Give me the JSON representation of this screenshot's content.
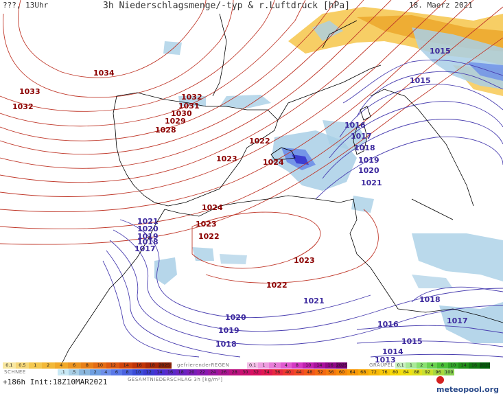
{
  "header": {
    "left": "???, 13Uhr",
    "title": "3h Niederschlagsmenge/-typ & r.Luftdruck [hPa]",
    "date": "18. Maerz 2021"
  },
  "isobar_labels_red": [
    "1034",
    "1033",
    "1032",
    "1032",
    "1031",
    "1030",
    "1029",
    "1028",
    "1022",
    "1023",
    "1024",
    "1024",
    "1023",
    "1022",
    "1023",
    "1022"
  ],
  "isobar_labels_blue": [
    "1015",
    "1015",
    "1016",
    "1017",
    "1018",
    "1019",
    "1020",
    "1021",
    "1021",
    "1020",
    "1019",
    "1018",
    "1017",
    "1021",
    "1020",
    "1019",
    "1018",
    "1018",
    "1017",
    "1016",
    "1015",
    "1014",
    "1013"
  ],
  "legend": {
    "schnee_label": "SCHNEE",
    "schnee_values": [
      "0.1",
      "0.5",
      "1",
      "2",
      "4",
      "6",
      "8",
      "10",
      "12",
      "14",
      "16",
      "18",
      "2025+"
    ],
    "regen_label": "gefrierenderREGEN",
    "regen_values": [
      "0.1",
      "1",
      "2",
      "4",
      "8",
      "10",
      "14",
      "16",
      "2025+"
    ],
    "graupel_label": "GRAUPEL",
    "graupel_values": [
      "0.1",
      "1",
      "2",
      "4",
      "8",
      "10",
      "14",
      "16",
      "2025+"
    ],
    "total_values": [
      ".1",
      ".5",
      "1",
      "2",
      "4",
      "6",
      "8",
      "10",
      "12",
      "14",
      "16",
      "18",
      "20",
      "22",
      "24",
      "26",
      "28",
      "30",
      "32",
      "34",
      "36",
      "40",
      "44",
      "48",
      "52",
      "56",
      "60",
      "64",
      "68",
      "72",
      "76",
      "80",
      "84",
      "88",
      "92",
      "96",
      "100"
    ],
    "total_label": "GESAMTNIEDERSCHLAG 3h [kg/m²]"
  },
  "footer": {
    "run": "+186h Init:18Z10MAR2021",
    "logo": "meteopool.org"
  },
  "colors": {
    "isobar_high": "#c0392b",
    "isobar_low": "#4a3fb0",
    "label_high": "#8b0000",
    "label_low": "#3d2a9e",
    "coast": "#000000",
    "snow": "#f2a818",
    "rain_light": "#a9cfe6",
    "rain_mid": "#6d8ee8",
    "rain_heavy": "#3a3ad0"
  }
}
